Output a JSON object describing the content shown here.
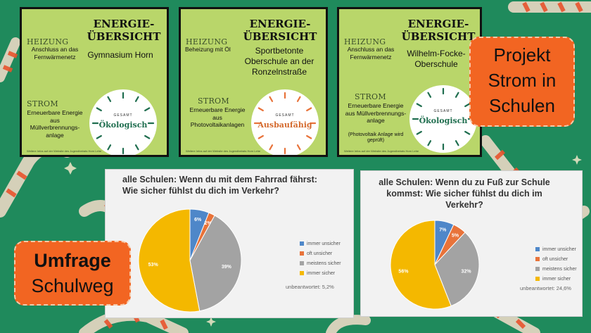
{
  "colors": {
    "background": "#1f8a5c",
    "card": "#b9d66a",
    "accent": "#f26522",
    "blue": "#4e87c9",
    "orange": "#e8733a",
    "gray": "#a3a3a3",
    "yellow": "#f4b800"
  },
  "cards": [
    {
      "title": "ENERGIE-ÜBERSICHT",
      "school": "Gymnasium Horn",
      "heizung_label": "HEIZUNG",
      "heizung_text": "Anschluss an das Fernwärmenetz",
      "strom_label": "STROM",
      "strom_text": "Erneuerbare Energie aus Müllverbrennungs-anlage",
      "strom_note": "",
      "gauge_top": "GESAMT",
      "rating": "Ökologisch",
      "footer": "Weitere Infos auf der Website des Jugendbeirats Horn Lehe"
    },
    {
      "title": "ENERGIE-ÜBERSICHT",
      "school": "Sportbetonte Oberschule an der Ronzelnstraße",
      "heizung_label": "HEIZUNG",
      "heizung_text": "Beheizung mit Öl",
      "strom_label": "STROM",
      "strom_text": "Erneuerbare Energie aus Photovoltaikanlagen",
      "strom_note": "",
      "gauge_top": "GESAMT",
      "rating": "Ausbaufähig",
      "footer": "Weitere Infos auf der Website des Jugendbeirats Horn Lehe"
    },
    {
      "title": "ENERGIE-ÜBERSICHT",
      "school": "Wilhelm-Focke-Oberschule",
      "heizung_label": "HEIZUNG",
      "heizung_text": "Anschluss an das Fernwärmenetz",
      "strom_label": "STROM",
      "strom_text": "Erneuerbare Energie aus Müllverbrennungs-anlage",
      "strom_note": "(Photovoltaik Anlage wird geprüft)",
      "gauge_top": "GESAMT",
      "rating": "Ökologisch",
      "footer": "Weitere Infos auf der Website des Jugendbeirats Horn Lehe"
    }
  ],
  "badges": {
    "projekt": [
      "Projekt",
      "Strom in",
      "Schulen"
    ],
    "umfrage": [
      "Umfrage",
      "Schulweg"
    ]
  },
  "chart_data": [
    {
      "type": "pie",
      "title": "alle Schulen: Wenn du mit dem Fahrrad fährst: Wie sicher fühlst du dich im Verkehr?",
      "categories": [
        "immer unsicher",
        "oft unsicher",
        "meistens sicher",
        "immer sicher"
      ],
      "values": [
        6,
        2,
        39,
        53
      ],
      "labels": [
        "6%",
        "2%",
        "39%",
        "53%"
      ],
      "legend_position": "right",
      "note": "unbeantwortet: 5,2%"
    },
    {
      "type": "pie",
      "title": "alle Schulen: Wenn du zu Fuß zur Schule kommst: Wie sicher fühlst du dich im Verkehr?",
      "categories": [
        "immer unsicher",
        "oft unsicher",
        "meistens sicher",
        "immer sicher"
      ],
      "values": [
        7,
        5,
        32,
        56
      ],
      "labels": [
        "7%",
        "5%",
        "32%",
        "56%"
      ],
      "legend_position": "right",
      "note": "unbeantwortet: 24,6%"
    }
  ]
}
